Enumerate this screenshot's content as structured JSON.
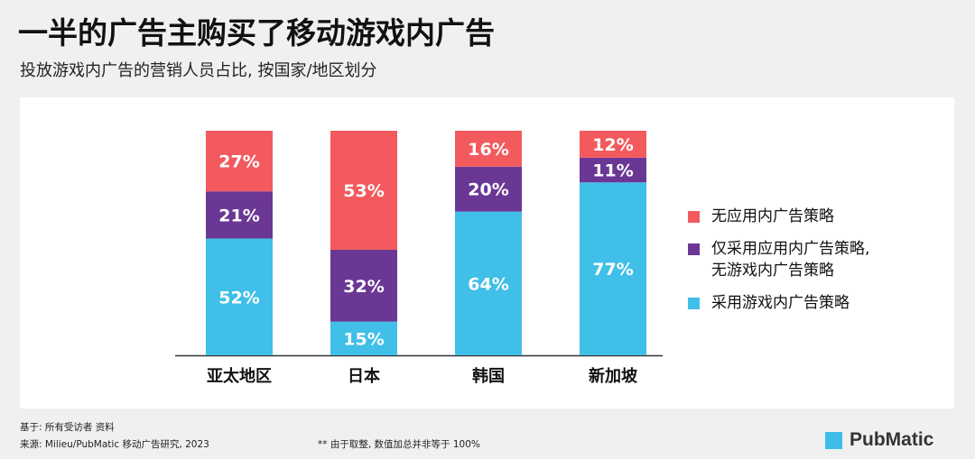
{
  "title": "一半的广告主购买了移动游戏内广告",
  "subtitle": "投放游戏内广告的营销人员占比, 按国家/地区划分",
  "chart_data": {
    "type": "bar",
    "stacked": true,
    "categories": [
      "亚太地区",
      "日本",
      "韩国",
      "新加坡"
    ],
    "series": [
      {
        "name": "采用游戏内广告策略",
        "color": "#40bfe8",
        "values": [
          52,
          15,
          64,
          77
        ],
        "labels": [
          "52%",
          "15%",
          "64%",
          "77%"
        ]
      },
      {
        "name": "仅采用应用内广告策略,\n无游戏内广告策略",
        "color": "#6b3795",
        "values": [
          21,
          32,
          20,
          11
        ],
        "labels": [
          "21%",
          "32%",
          "20%",
          "11%"
        ]
      },
      {
        "name": "无应用内广告策略",
        "color": "#f25a5e",
        "values": [
          27,
          53,
          16,
          12
        ],
        "labels": [
          "27%",
          "53%",
          "16%",
          "12%"
        ]
      }
    ],
    "ylim": [
      0,
      100
    ],
    "grid": false,
    "legend_position": "right"
  },
  "footer": {
    "base": "基于: 所有受访者 资料",
    "source": "来源: Milieu/PubMatic 移动广告研究, 2023",
    "note": "** 由于取整, 数值加总并非等于 100%"
  },
  "logo": {
    "text": "PubMatic",
    "color": "#3ebde9"
  }
}
